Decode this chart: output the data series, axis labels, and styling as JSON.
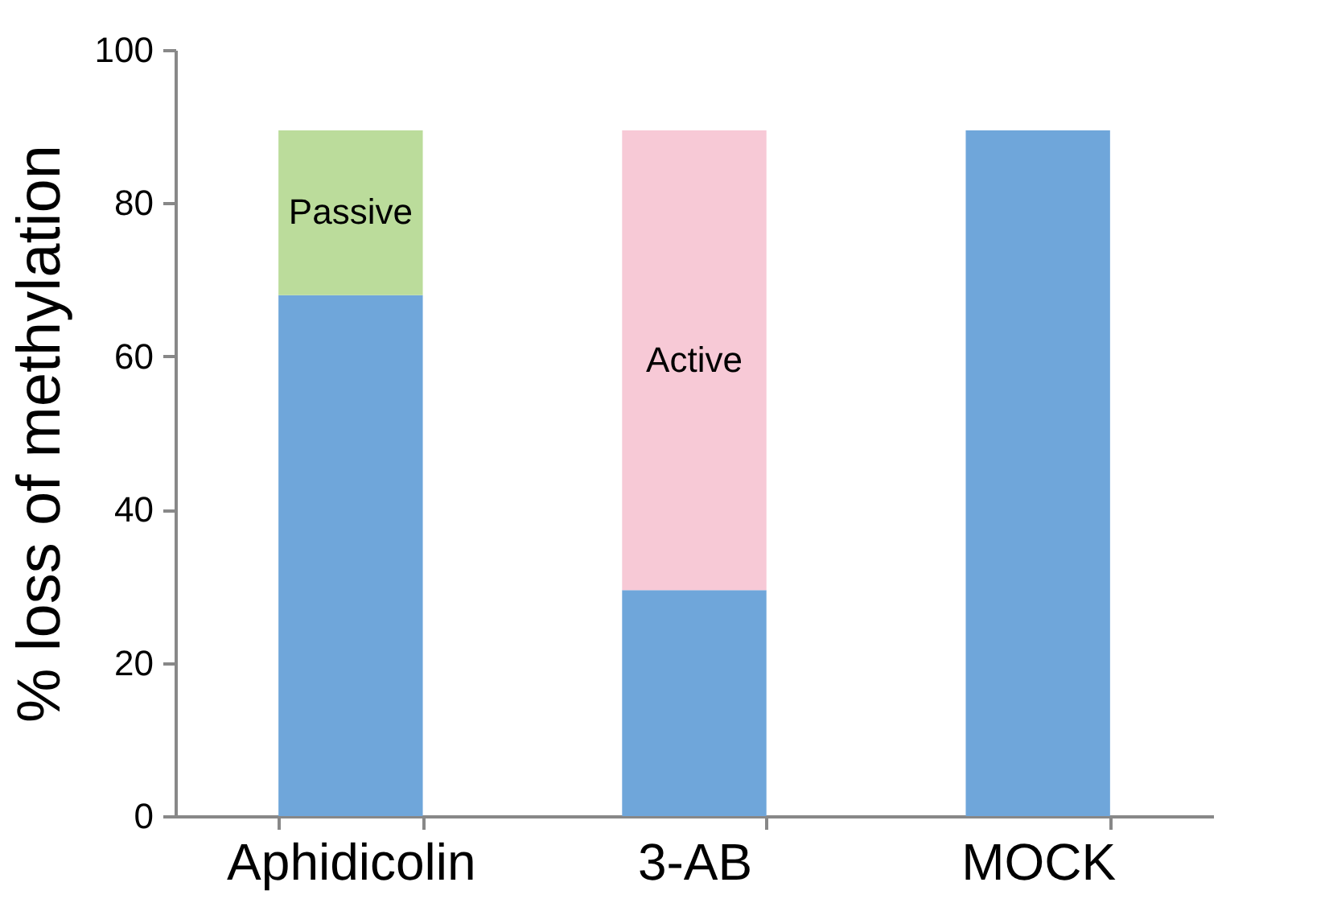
{
  "chart_data": {
    "type": "bar",
    "stacked": true,
    "ylabel": "% loss of methylation",
    "categories": [
      "Aphidicolin",
      "3-AB",
      "MOCK"
    ],
    "series": [
      {
        "color": "#6fa6da",
        "values": [
          68,
          29.5,
          89.5
        ]
      },
      {
        "name": "Passive",
        "color": "#bbdc9b",
        "values": [
          21.5,
          null,
          null
        ]
      },
      {
        "name": "Active",
        "color": "#f7c9d6",
        "values": [
          null,
          60,
          null
        ]
      }
    ],
    "ylim": [
      0,
      100
    ],
    "yticks": [
      0,
      20,
      40,
      60,
      80,
      100
    ],
    "grid": false,
    "legend": false
  }
}
